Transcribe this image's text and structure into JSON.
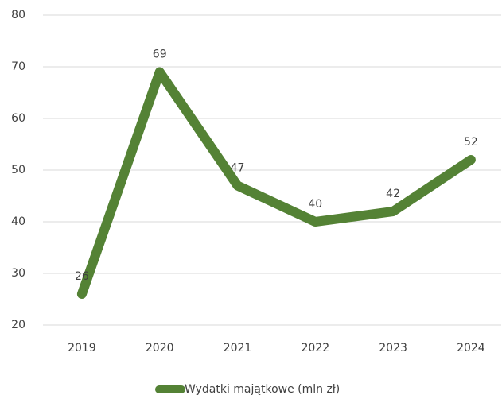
{
  "chart_data": {
    "type": "line",
    "categories": [
      "2019",
      "2020",
      "2021",
      "2022",
      "2023",
      "2024"
    ],
    "series": [
      {
        "name": "Wydatki majątkowe (mln zł)",
        "color": "#548235",
        "values": [
          26,
          69,
          47,
          40,
          42,
          52
        ]
      }
    ],
    "ylim": [
      20,
      80
    ],
    "yticks": [
      20,
      30,
      40,
      50,
      60,
      70,
      80
    ],
    "grid": true,
    "legend": "bottom",
    "data_labels": true
  }
}
